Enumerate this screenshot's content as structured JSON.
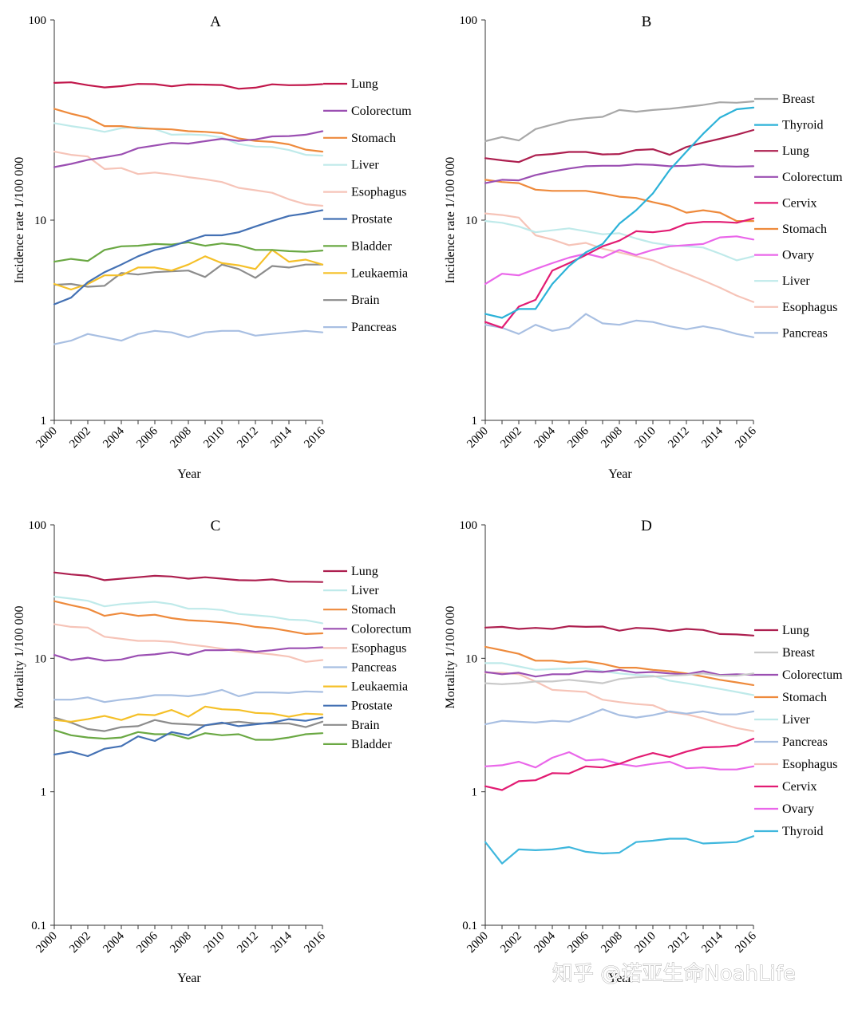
{
  "watermark": "知乎 @诺亚生命NoahLife",
  "chart_data": [
    {
      "panel": "A",
      "type": "line",
      "title": "A",
      "xlabel": "Year",
      "ylabel": "Incidence rate 1/100 000",
      "yscale": "log",
      "ylim": [
        1,
        100
      ],
      "yticks": [
        "1",
        "10",
        "100"
      ],
      "xlim": [
        2000,
        2016
      ],
      "xticks": [
        "2000",
        "2002",
        "2004",
        "2006",
        "2008",
        "2010",
        "2012",
        "2014",
        "2016"
      ],
      "legend_position": "right",
      "x": [
        2000,
        2001,
        2002,
        2003,
        2004,
        2005,
        2006,
        2007,
        2008,
        2009,
        2010,
        2011,
        2012,
        2013,
        2014,
        2015,
        2016
      ],
      "series": [
        {
          "name": "Lung",
          "color": "#c1174b",
          "values": [
            48.5,
            48.8,
            47.2,
            46.0,
            46.7,
            47.9,
            47.8,
            46.6,
            47.6,
            47.5,
            47.3,
            45.3,
            45.9,
            47.7,
            47.2,
            47.3,
            47.8
          ]
        },
        {
          "name": "Colorectum",
          "color": "#9b4fb2",
          "values": [
            18.4,
            19.1,
            20.0,
            20.6,
            21.3,
            22.9,
            23.6,
            24.3,
            24.1,
            24.8,
            25.5,
            24.9,
            25.3,
            26.2,
            26.3,
            26.7,
            27.8
          ]
        },
        {
          "name": "Stomach",
          "color": "#ee8a3c",
          "values": [
            36.0,
            34.0,
            32.5,
            29.5,
            29.5,
            28.8,
            28.6,
            28.4,
            27.8,
            27.6,
            27.2,
            25.6,
            24.9,
            24.6,
            23.9,
            22.5,
            22.0
          ]
        },
        {
          "name": "Liver",
          "color": "#bfeaea",
          "values": [
            30.5,
            29.5,
            28.7,
            27.6,
            28.8,
            29.2,
            28.5,
            26.7,
            26.8,
            26.6,
            25.9,
            24.0,
            23.3,
            23.2,
            22.4,
            21.2,
            21.0
          ]
        },
        {
          "name": "Esophagus",
          "color": "#f6c4b8",
          "values": [
            22.0,
            21.2,
            20.8,
            18.0,
            18.2,
            17.0,
            17.3,
            16.9,
            16.4,
            16.0,
            15.5,
            14.5,
            14.1,
            13.7,
            12.7,
            12.0,
            11.8
          ]
        },
        {
          "name": "Prostate",
          "color": "#4471b4",
          "values": [
            3.8,
            4.1,
            4.9,
            5.5,
            6.0,
            6.6,
            7.1,
            7.4,
            7.9,
            8.4,
            8.4,
            8.7,
            9.3,
            9.9,
            10.5,
            10.8,
            11.2
          ]
        },
        {
          "name": "Bladder",
          "color": "#6aa843",
          "values": [
            6.2,
            6.4,
            6.25,
            7.1,
            7.4,
            7.45,
            7.6,
            7.55,
            7.75,
            7.45,
            7.65,
            7.5,
            7.1,
            7.1,
            7.0,
            6.95,
            7.05
          ]
        },
        {
          "name": "Leukaemia",
          "color": "#f5c028",
          "values": [
            4.8,
            4.5,
            4.8,
            5.3,
            5.3,
            5.8,
            5.8,
            5.6,
            6.0,
            6.6,
            6.1,
            5.95,
            5.7,
            7.1,
            6.2,
            6.35,
            6.0
          ]
        },
        {
          "name": "Brain",
          "color": "#8c8c8c",
          "values": [
            4.75,
            4.8,
            4.65,
            4.7,
            5.45,
            5.35,
            5.5,
            5.55,
            5.6,
            5.2,
            6.0,
            5.7,
            5.15,
            5.9,
            5.8,
            6.0,
            6.0
          ]
        },
        {
          "name": "Pancreas",
          "color": "#a8bfe2",
          "values": [
            2.4,
            2.5,
            2.7,
            2.6,
            2.5,
            2.7,
            2.8,
            2.75,
            2.6,
            2.75,
            2.8,
            2.8,
            2.65,
            2.7,
            2.75,
            2.8,
            2.75
          ]
        }
      ]
    },
    {
      "panel": "B",
      "type": "line",
      "title": "B",
      "xlabel": "Year",
      "ylabel": "Incidence rate 1/100 000",
      "yscale": "log",
      "ylim": [
        1,
        100
      ],
      "yticks": [
        "1",
        "10",
        "100"
      ],
      "xlim": [
        2000,
        2016
      ],
      "xticks": [
        "2000",
        "2002",
        "2004",
        "2006",
        "2008",
        "2010",
        "2012",
        "2014",
        "2016"
      ],
      "legend_position": "right",
      "x": [
        2000,
        2001,
        2002,
        2003,
        2004,
        2005,
        2006,
        2007,
        2008,
        2009,
        2010,
        2011,
        2012,
        2013,
        2014,
        2015,
        2016
      ],
      "series": [
        {
          "name": "Breast",
          "color": "#a8a8a8",
          "values": [
            24.8,
            26.0,
            25.0,
            28.5,
            30.0,
            31.5,
            32.3,
            32.8,
            35.5,
            34.8,
            35.5,
            36.0,
            36.8,
            37.6,
            38.8,
            38.6,
            39.2
          ]
        },
        {
          "name": "Thyroid",
          "color": "#2cb2d8",
          "values": [
            3.4,
            3.25,
            3.6,
            3.6,
            4.8,
            5.9,
            6.9,
            7.6,
            9.6,
            11.2,
            13.6,
            17.8,
            22.0,
            27.0,
            32.5,
            35.8,
            36.5
          ]
        },
        {
          "name": "Lung",
          "color": "#ad1f4f",
          "values": [
            20.4,
            19.9,
            19.5,
            21.1,
            21.4,
            21.9,
            21.9,
            21.3,
            21.4,
            22.4,
            22.6,
            21.2,
            23.2,
            24.4,
            25.5,
            26.7,
            28.2
          ]
        },
        {
          "name": "Colorectum",
          "color": "#9b4fb2",
          "values": [
            15.3,
            15.9,
            15.8,
            16.8,
            17.5,
            18.1,
            18.6,
            18.7,
            18.7,
            19.0,
            18.9,
            18.6,
            18.7,
            19.0,
            18.6,
            18.5,
            18.6
          ]
        },
        {
          "name": "Cervix",
          "color": "#e21c73",
          "values": [
            3.1,
            2.9,
            3.7,
            4.0,
            5.6,
            6.1,
            6.7,
            7.4,
            7.9,
            8.8,
            8.7,
            8.9,
            9.6,
            9.8,
            9.8,
            9.7,
            10.2
          ]
        },
        {
          "name": "Stomach",
          "color": "#ee8a3c",
          "values": [
            15.9,
            15.5,
            15.3,
            14.2,
            14.0,
            14.0,
            14.0,
            13.6,
            13.1,
            12.9,
            12.3,
            11.8,
            10.9,
            11.2,
            10.9,
            9.9,
            9.9
          ]
        },
        {
          "name": "Ovary",
          "color": "#ea67ea",
          "values": [
            4.8,
            5.4,
            5.3,
            5.7,
            6.1,
            6.5,
            6.8,
            6.5,
            7.1,
            6.7,
            7.1,
            7.4,
            7.5,
            7.6,
            8.2,
            8.3,
            8.0
          ]
        },
        {
          "name": "Liver",
          "color": "#bfeaea",
          "values": [
            9.9,
            9.7,
            9.3,
            8.7,
            8.9,
            9.1,
            8.8,
            8.5,
            8.6,
            8.1,
            7.7,
            7.5,
            7.4,
            7.3,
            6.8,
            6.3,
            6.6
          ]
        },
        {
          "name": "Esophagus",
          "color": "#f6c4b8",
          "values": [
            10.8,
            10.6,
            10.3,
            8.4,
            8.0,
            7.5,
            7.7,
            7.2,
            6.9,
            6.6,
            6.3,
            5.8,
            5.4,
            5.0,
            4.6,
            4.2,
            3.9
          ]
        },
        {
          "name": "Pancreas",
          "color": "#a8bfe2",
          "values": [
            3.0,
            2.9,
            2.7,
            3.0,
            2.8,
            2.9,
            3.4,
            3.05,
            3.0,
            3.15,
            3.1,
            2.95,
            2.85,
            2.95,
            2.85,
            2.7,
            2.6
          ]
        }
      ]
    },
    {
      "panel": "C",
      "type": "line",
      "title": "C",
      "xlabel": "Year",
      "ylabel": "Mortality 1/100 000",
      "yscale": "log",
      "ylim": [
        0.1,
        100
      ],
      "yticks": [
        "0.1",
        "1",
        "10",
        "100"
      ],
      "xlim": [
        2000,
        2016
      ],
      "xticks": [
        "2000",
        "2002",
        "2004",
        "2006",
        "2008",
        "2010",
        "2012",
        "2014",
        "2016"
      ],
      "legend_position": "right",
      "x": [
        2000,
        2001,
        2002,
        2003,
        2004,
        2005,
        2006,
        2007,
        2008,
        2009,
        2010,
        2011,
        2012,
        2013,
        2014,
        2015,
        2016
      ],
      "series": [
        {
          "name": "Lung",
          "color": "#ad1f4f",
          "values": [
            44.0,
            42.5,
            41.5,
            38.5,
            39.5,
            40.5,
            41.5,
            41.0,
            39.5,
            40.5,
            39.5,
            38.5,
            38.3,
            39.0,
            37.5,
            37.5,
            37.3
          ]
        },
        {
          "name": "Liver",
          "color": "#bfeaea",
          "values": [
            29.0,
            28.0,
            27.0,
            24.5,
            25.5,
            26.0,
            26.5,
            25.5,
            23.5,
            23.5,
            23.0,
            21.5,
            21.0,
            20.5,
            19.5,
            19.3,
            18.3
          ]
        },
        {
          "name": "Stomach",
          "color": "#ee8a3c",
          "values": [
            26.8,
            25.0,
            23.5,
            20.8,
            21.8,
            20.8,
            21.2,
            20.0,
            19.3,
            19.0,
            18.6,
            18.1,
            17.2,
            16.8,
            16.0,
            15.2,
            15.4
          ]
        },
        {
          "name": "Colorectum",
          "color": "#9b4fb2",
          "values": [
            10.6,
            9.7,
            10.1,
            9.6,
            9.8,
            10.5,
            10.7,
            11.1,
            10.6,
            11.5,
            11.5,
            11.6,
            11.2,
            11.5,
            11.9,
            11.9,
            12.1
          ]
        },
        {
          "name": "Esophagus",
          "color": "#f6c4b8",
          "values": [
            18.0,
            17.2,
            17.0,
            14.5,
            14.0,
            13.5,
            13.5,
            13.3,
            12.7,
            12.3,
            11.8,
            11.2,
            11.0,
            10.7,
            10.3,
            9.4,
            9.7
          ]
        },
        {
          "name": "Pancreas",
          "color": "#a8bfe2",
          "values": [
            4.9,
            4.9,
            5.1,
            4.7,
            4.9,
            5.05,
            5.3,
            5.3,
            5.2,
            5.4,
            5.8,
            5.2,
            5.55,
            5.55,
            5.5,
            5.65,
            5.6
          ]
        },
        {
          "name": "Leukaemia",
          "color": "#f5c028",
          "values": [
            3.45,
            3.35,
            3.5,
            3.7,
            3.45,
            3.8,
            3.75,
            4.1,
            3.65,
            4.35,
            4.15,
            4.1,
            3.9,
            3.85,
            3.65,
            3.85,
            3.8
          ]
        },
        {
          "name": "Prostate",
          "color": "#4471b4",
          "values": [
            1.9,
            2.0,
            1.85,
            2.1,
            2.2,
            2.6,
            2.4,
            2.8,
            2.65,
            3.15,
            3.3,
            3.1,
            3.2,
            3.3,
            3.5,
            3.4,
            3.6
          ]
        },
        {
          "name": "Brain",
          "color": "#8c8c8c",
          "values": [
            3.6,
            3.3,
            2.95,
            2.85,
            3.05,
            3.1,
            3.45,
            3.25,
            3.2,
            3.15,
            3.25,
            3.35,
            3.25,
            3.25,
            3.25,
            3.05,
            3.35
          ]
        },
        {
          "name": "Bladder",
          "color": "#6aa843",
          "values": [
            2.9,
            2.65,
            2.55,
            2.5,
            2.55,
            2.8,
            2.7,
            2.7,
            2.5,
            2.75,
            2.65,
            2.7,
            2.45,
            2.45,
            2.55,
            2.7,
            2.75
          ]
        }
      ]
    },
    {
      "panel": "D",
      "type": "line",
      "title": "D",
      "xlabel": "Year",
      "ylabel": "Mortality 1/100 000",
      "yscale": "log",
      "ylim": [
        0.1,
        100
      ],
      "yticks": [
        "0.1",
        "1",
        "10",
        "100"
      ],
      "xlim": [
        2000,
        2016
      ],
      "xticks": [
        "2000",
        "2002",
        "2004",
        "2006",
        "2008",
        "2010",
        "2012",
        "2014",
        "2016"
      ],
      "legend_position": "right",
      "x": [
        2000,
        2001,
        2002,
        2003,
        2004,
        2005,
        2006,
        2007,
        2008,
        2009,
        2010,
        2011,
        2012,
        2013,
        2014,
        2015,
        2016
      ],
      "series": [
        {
          "name": "Lung",
          "color": "#ad1f4f",
          "values": [
            17.0,
            17.2,
            16.6,
            16.9,
            16.6,
            17.4,
            17.2,
            17.3,
            16.1,
            16.9,
            16.7,
            16.0,
            16.6,
            16.3,
            15.2,
            15.1,
            14.8
          ]
        },
        {
          "name": "Breast",
          "color": "#c9c9c9",
          "values": [
            6.5,
            6.4,
            6.5,
            6.7,
            6.7,
            6.9,
            6.7,
            6.5,
            7.0,
            7.2,
            7.3,
            7.4,
            7.5,
            7.7,
            7.4,
            7.4,
            7.7
          ]
        },
        {
          "name": "Colorectum",
          "color": "#9b4fb2",
          "values": [
            7.9,
            7.6,
            7.8,
            7.3,
            7.6,
            7.6,
            8.0,
            7.9,
            8.2,
            7.8,
            7.9,
            7.7,
            7.6,
            8.0,
            7.5,
            7.6,
            7.5
          ]
        },
        {
          "name": "Stomach",
          "color": "#ee8a3c",
          "values": [
            12.2,
            11.5,
            10.8,
            9.6,
            9.6,
            9.3,
            9.5,
            9.1,
            8.5,
            8.5,
            8.2,
            8.0,
            7.7,
            7.3,
            6.9,
            6.6,
            6.3
          ]
        },
        {
          "name": "Liver",
          "color": "#bfeaea",
          "values": [
            9.2,
            9.2,
            8.7,
            8.2,
            8.3,
            8.4,
            8.4,
            8.0,
            7.7,
            7.5,
            7.4,
            6.8,
            6.5,
            6.2,
            5.9,
            5.6,
            5.3
          ]
        },
        {
          "name": "Pancreas",
          "color": "#a8bfe2",
          "values": [
            3.2,
            3.4,
            3.35,
            3.3,
            3.4,
            3.35,
            3.7,
            4.15,
            3.75,
            3.6,
            3.75,
            4.0,
            3.85,
            4.0,
            3.8,
            3.8,
            4.0
          ]
        },
        {
          "name": "Esophagus",
          "color": "#f6c4b8",
          "values": [
            7.8,
            7.8,
            7.6,
            6.7,
            5.8,
            5.7,
            5.6,
            4.9,
            4.7,
            4.55,
            4.45,
            3.95,
            3.8,
            3.55,
            3.25,
            3.0,
            2.85
          ]
        },
        {
          "name": "Cervix",
          "color": "#e21c73",
          "values": [
            1.1,
            1.03,
            1.2,
            1.22,
            1.38,
            1.37,
            1.55,
            1.52,
            1.62,
            1.8,
            1.95,
            1.82,
            2.0,
            2.15,
            2.17,
            2.22,
            2.5
          ]
        },
        {
          "name": "Ovary",
          "color": "#ea67ea",
          "values": [
            1.55,
            1.58,
            1.68,
            1.52,
            1.8,
            1.98,
            1.72,
            1.75,
            1.62,
            1.55,
            1.62,
            1.68,
            1.5,
            1.52,
            1.47,
            1.47,
            1.55
          ]
        },
        {
          "name": "Thyroid",
          "color": "#3fb7dd",
          "values": [
            0.42,
            0.29,
            0.37,
            0.365,
            0.37,
            0.385,
            0.355,
            0.345,
            0.35,
            0.42,
            0.43,
            0.445,
            0.445,
            0.41,
            0.415,
            0.42,
            0.465
          ]
        }
      ]
    }
  ]
}
